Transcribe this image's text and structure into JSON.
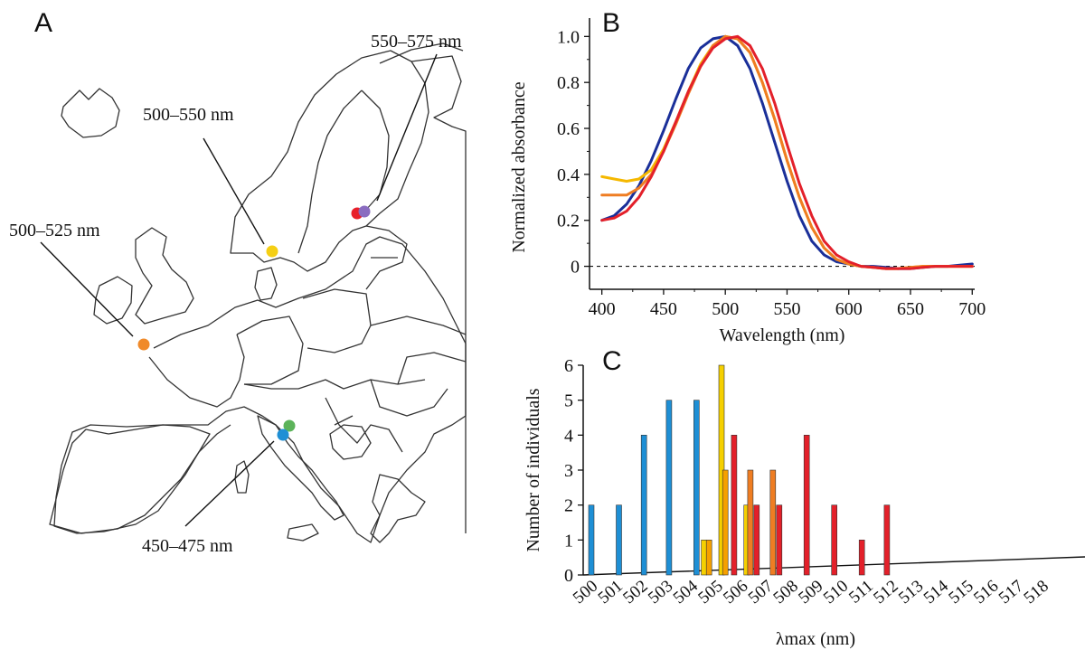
{
  "panels": {
    "a": "A",
    "b": "B",
    "c": "C"
  },
  "map": {
    "labels": {
      "r1": "550–575 nm",
      "r2": "500–550 nm",
      "r3": "500–525 nm",
      "r4": "450–475 nm"
    },
    "site_colors": {
      "red": "#e8202a",
      "purple": "#8a6cc0",
      "yellow": "#f5cf14",
      "orange": "#f08a2a",
      "green": "#5cb35a",
      "blue": "#1e8fd5"
    }
  },
  "chart_data": [
    {
      "type": "line",
      "panel": "B",
      "title": "",
      "xlabel": "Wavelength (nm)",
      "ylabel": "Normalized absorbance",
      "xlim": [
        390,
        702
      ],
      "ylim": [
        -0.1,
        1.08
      ],
      "xticks": [
        400,
        450,
        500,
        550,
        600,
        650,
        700
      ],
      "yticks": [
        0,
        0.2,
        0.4,
        0.6,
        0.8,
        1.0
      ],
      "ytick_labels": [
        "0",
        "0.2",
        "0.4",
        "0.6",
        "0.8",
        "1.0"
      ],
      "zero_line": "dashed",
      "x": [
        400,
        410,
        420,
        430,
        440,
        450,
        460,
        470,
        480,
        490,
        500,
        510,
        520,
        530,
        540,
        550,
        560,
        570,
        580,
        590,
        600,
        610,
        620,
        630,
        640,
        650,
        660,
        670,
        680,
        690,
        700
      ],
      "series": [
        {
          "color": "#1a2f99",
          "values": [
            0.2,
            0.22,
            0.27,
            0.35,
            0.46,
            0.59,
            0.73,
            0.86,
            0.95,
            0.99,
            1.0,
            0.96,
            0.86,
            0.71,
            0.54,
            0.37,
            0.22,
            0.11,
            0.05,
            0.02,
            0.01,
            0.0,
            0.0,
            -0.005,
            -0.01,
            -0.01,
            -0.005,
            0.0,
            0.0,
            0.005,
            0.01
          ]
        },
        {
          "color": "#f5b800",
          "values": [
            0.39,
            0.38,
            0.37,
            0.38,
            0.42,
            0.51,
            0.63,
            0.76,
            0.88,
            0.96,
            1.0,
            0.99,
            0.93,
            0.8,
            0.64,
            0.46,
            0.3,
            0.17,
            0.08,
            0.03,
            0.01,
            0.0,
            -0.005,
            -0.01,
            -0.01,
            -0.005,
            0.0,
            0.0,
            0.0,
            0.0,
            0.0
          ]
        },
        {
          "color": "#ef7d22",
          "values": [
            0.31,
            0.31,
            0.31,
            0.34,
            0.4,
            0.5,
            0.62,
            0.75,
            0.87,
            0.96,
            1.0,
            0.99,
            0.93,
            0.8,
            0.64,
            0.46,
            0.3,
            0.17,
            0.08,
            0.03,
            0.01,
            0.0,
            -0.005,
            -0.01,
            -0.01,
            -0.005,
            0.0,
            0.0,
            0.0,
            0.0,
            0.0
          ]
        },
        {
          "color": "#e3202a",
          "values": [
            0.2,
            0.21,
            0.24,
            0.3,
            0.39,
            0.5,
            0.63,
            0.76,
            0.87,
            0.95,
            0.99,
            1.0,
            0.96,
            0.86,
            0.71,
            0.53,
            0.36,
            0.22,
            0.11,
            0.05,
            0.02,
            0.0,
            -0.005,
            -0.01,
            -0.01,
            -0.01,
            -0.005,
            0.0,
            0.0,
            0.0,
            0.0
          ]
        }
      ]
    },
    {
      "type": "bar",
      "panel": "C",
      "title": "",
      "xlabel": "λmax (nm)",
      "ylabel": "Number of individuals",
      "ylim": [
        0,
        6
      ],
      "yticks": [
        0,
        1,
        2,
        3,
        4,
        5,
        6
      ],
      "categories": [
        "500",
        "501",
        "502",
        "503",
        "504",
        "505",
        "506",
        "507",
        "508",
        "509",
        "510",
        "511",
        "512",
        "513",
        "514",
        "515",
        "516",
        "517",
        "518"
      ],
      "bars": [
        {
          "x": 500.0,
          "value": 2,
          "color": "#1e8fd5"
        },
        {
          "x": 501.1,
          "value": 2,
          "color": "#1e8fd5"
        },
        {
          "x": 502.1,
          "value": 4,
          "color": "#1e8fd5"
        },
        {
          "x": 503.1,
          "value": 5,
          "color": "#1e8fd5"
        },
        {
          "x": 504.2,
          "value": 5,
          "color": "#1e8fd5"
        },
        {
          "x": 504.5,
          "value": 1,
          "color": "#f5d000"
        },
        {
          "x": 504.7,
          "value": 1,
          "color": "#f5a000"
        },
        {
          "x": 505.2,
          "value": 6,
          "color": "#f5d000"
        },
        {
          "x": 505.35,
          "value": 3,
          "color": "#f5a000"
        },
        {
          "x": 505.7,
          "value": 4,
          "color": "#e3202a"
        },
        {
          "x": 506.2,
          "value": 2,
          "color": "#f5d000"
        },
        {
          "x": 506.35,
          "value": 3,
          "color": "#ef7d22"
        },
        {
          "x": 506.6,
          "value": 2,
          "color": "#e3202a"
        },
        {
          "x": 507.25,
          "value": 3,
          "color": "#ef7d22"
        },
        {
          "x": 507.5,
          "value": 2,
          "color": "#e3202a"
        },
        {
          "x": 508.6,
          "value": 4,
          "color": "#e3202a"
        },
        {
          "x": 509.7,
          "value": 2,
          "color": "#e3202a"
        },
        {
          "x": 510.8,
          "value": 1,
          "color": "#e3202a"
        },
        {
          "x": 511.8,
          "value": 2,
          "color": "#e3202a"
        }
      ]
    }
  ]
}
